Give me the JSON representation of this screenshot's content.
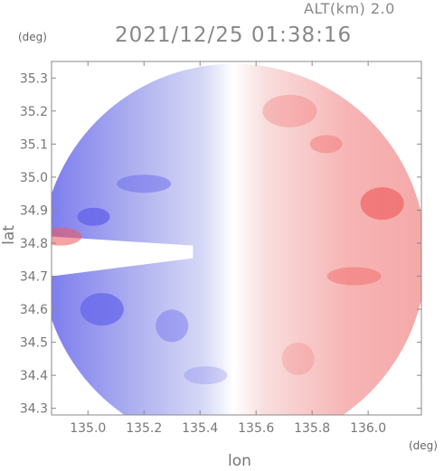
{
  "header": {
    "altitude_label": "ALT(km) 2.0",
    "datetime": "2021/12/25 01:38:16",
    "y_unit": "(deg)",
    "x_unit": "(deg)"
  },
  "chart_data": {
    "type": "heatmap",
    "title": "2021/12/25 01:38:16",
    "xlabel": "lon",
    "ylabel": "lat",
    "xlim": [
      134.87,
      136.19
    ],
    "ylim": [
      34.28,
      35.35
    ],
    "x_ticks": [
      "135.0",
      "135.2",
      "135.4",
      "135.6",
      "135.8",
      "136.0"
    ],
    "x_tick_values": [
      135.0,
      135.2,
      135.4,
      135.6,
      135.8,
      136.0
    ],
    "y_ticks": [
      "34.3",
      "34.4",
      "34.5",
      "34.6",
      "34.7",
      "34.8",
      "34.9",
      "35.0",
      "35.1",
      "35.2",
      "35.3"
    ],
    "y_tick_values": [
      34.3,
      34.4,
      34.5,
      34.6,
      34.7,
      34.8,
      34.9,
      35.0,
      35.1,
      35.2,
      35.3
    ],
    "grid": false,
    "colors": {
      "negative": "#6f6ff0",
      "positive": "#f07070",
      "neutral": "#ffffff",
      "frame": "#888888"
    },
    "radar_center": [
      135.52,
      34.76
    ],
    "patches": [
      {
        "lon": 135.02,
        "lat": 34.88,
        "value": -1.0
      },
      {
        "lon": 135.05,
        "lat": 34.6,
        "value": -0.9
      },
      {
        "lon": 135.2,
        "lat": 34.98,
        "value": -0.6
      },
      {
        "lon": 135.3,
        "lat": 34.55,
        "value": -0.5
      },
      {
        "lon": 135.42,
        "lat": 34.4,
        "value": -0.3
      },
      {
        "lon": 135.72,
        "lat": 35.2,
        "value": 0.4
      },
      {
        "lon": 135.85,
        "lat": 35.1,
        "value": 0.5
      },
      {
        "lon": 136.05,
        "lat": 34.92,
        "value": 0.9
      },
      {
        "lon": 135.95,
        "lat": 34.7,
        "value": 0.6
      },
      {
        "lon": 135.75,
        "lat": 34.45,
        "value": 0.3
      },
      {
        "lon": 134.9,
        "lat": 34.82,
        "value": 0.8
      }
    ]
  }
}
